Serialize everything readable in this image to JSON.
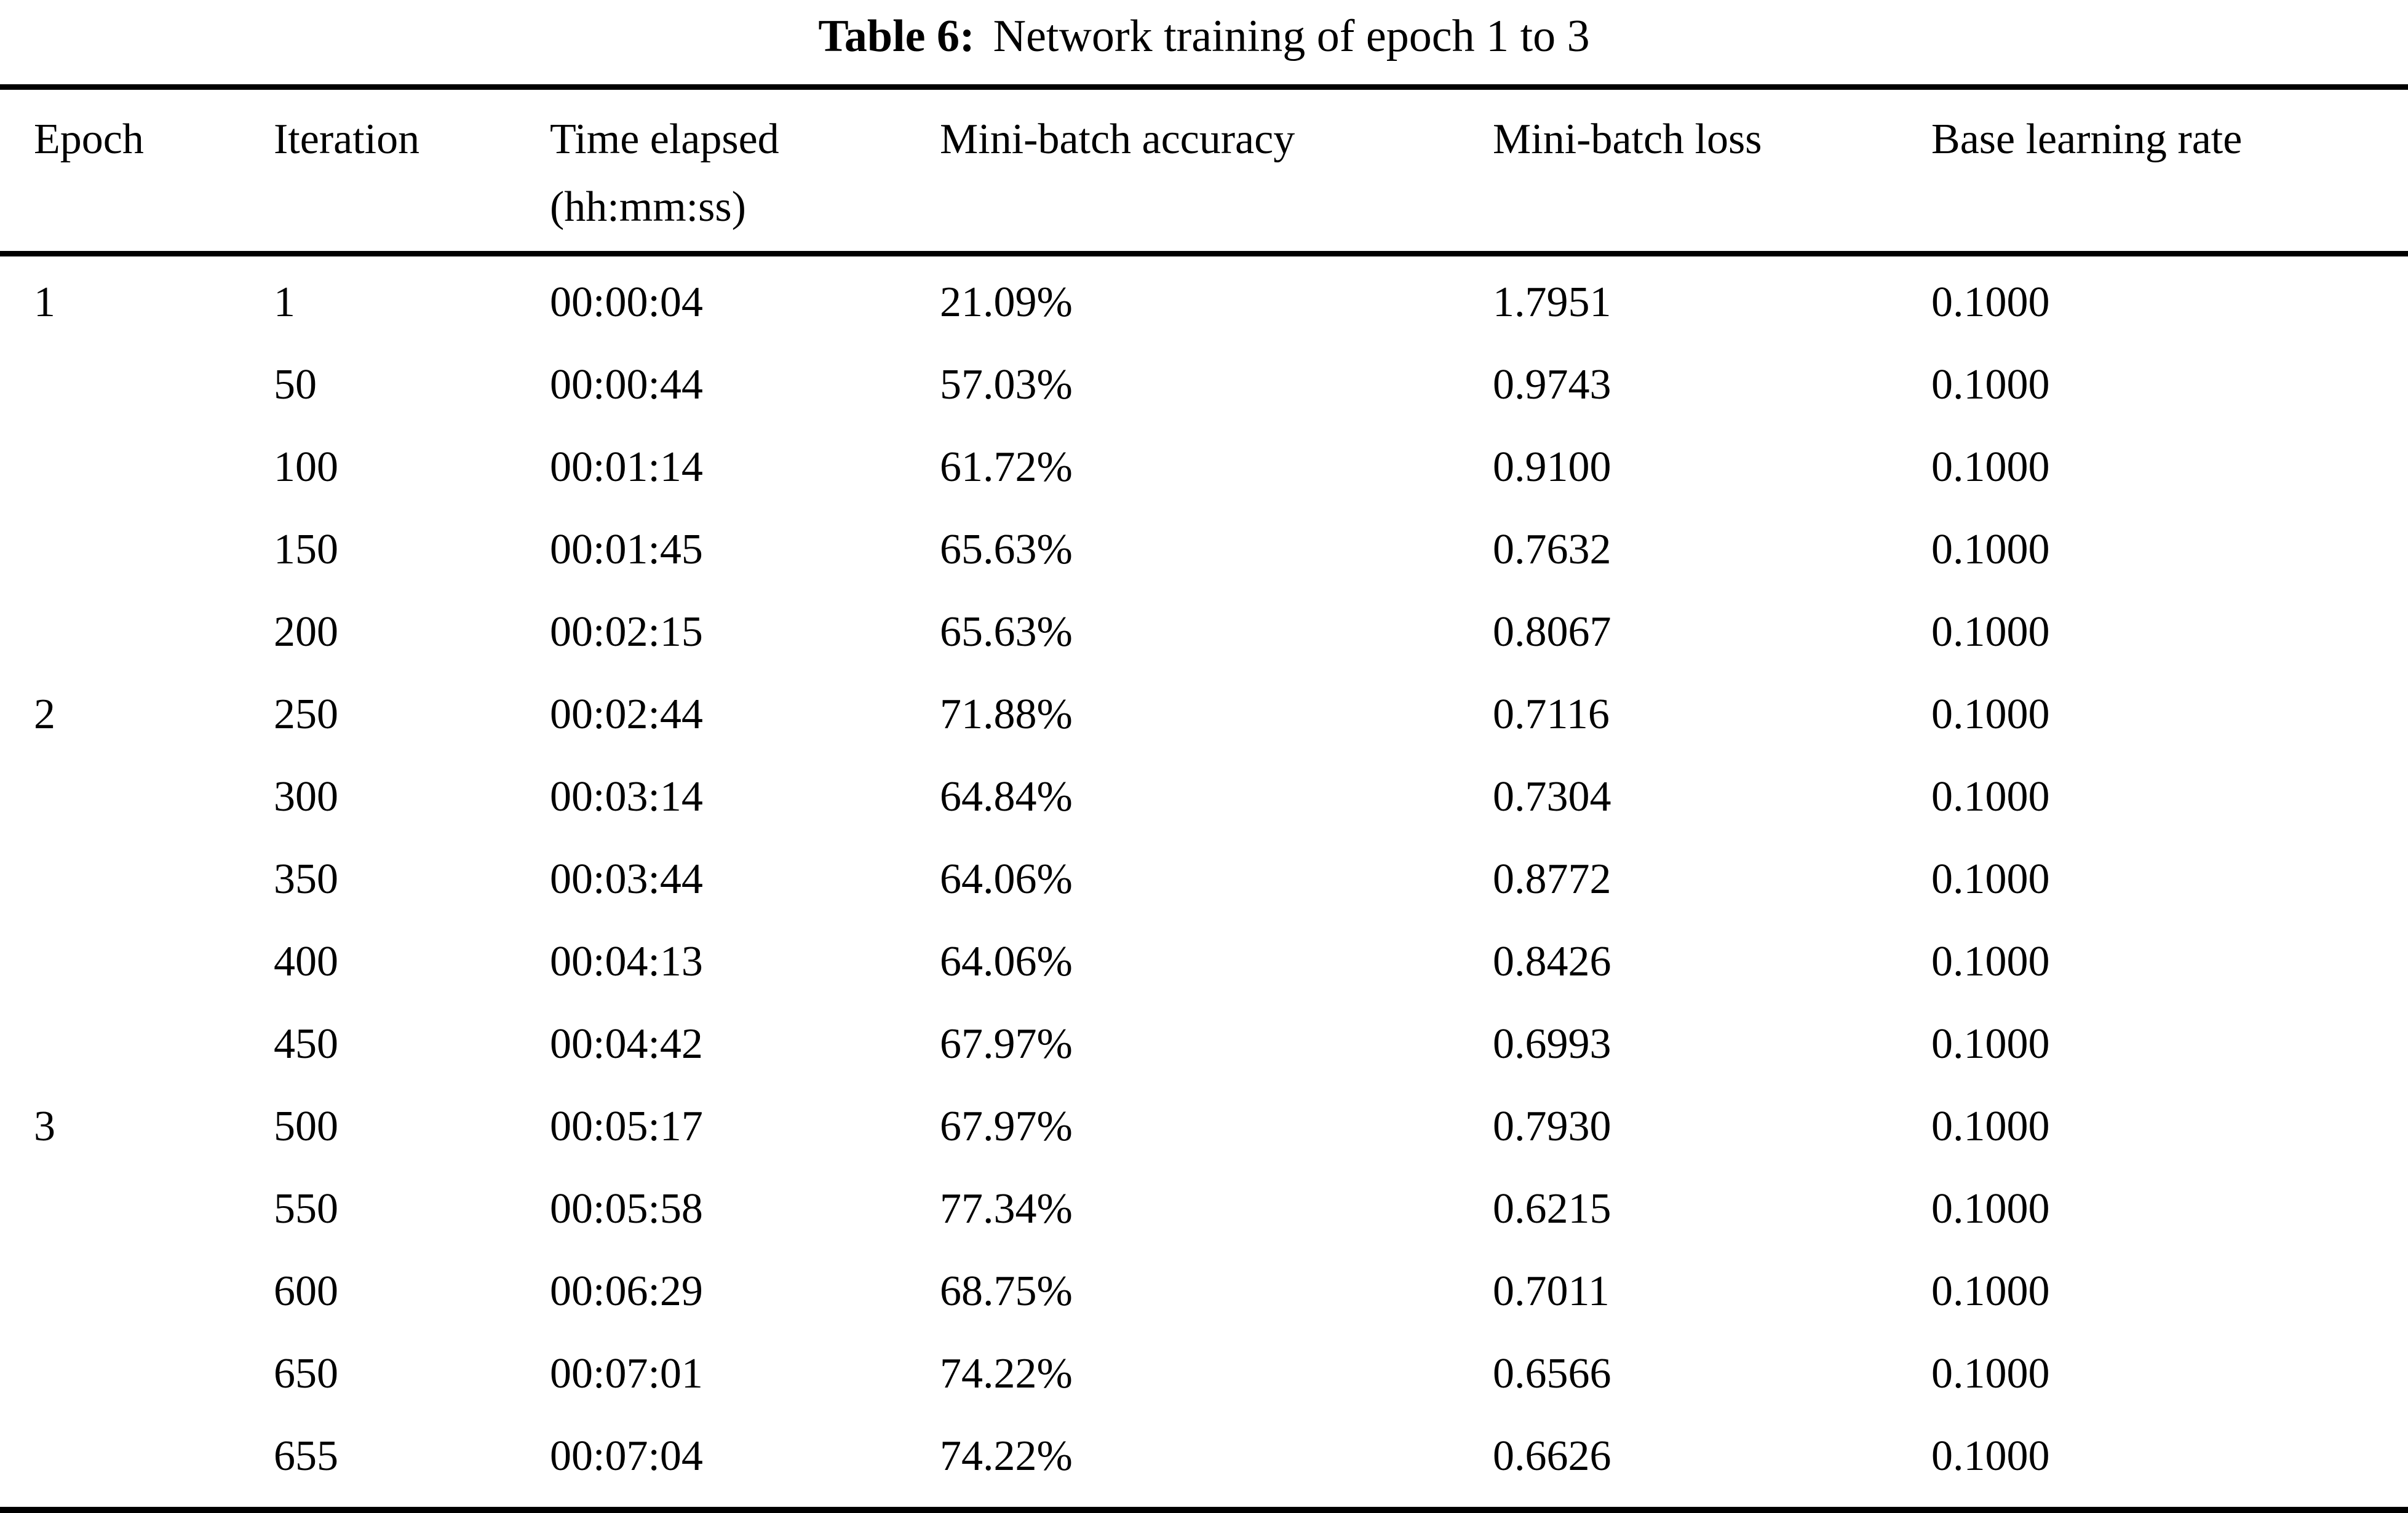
{
  "title": {
    "label": "Table 6:",
    "text": "Network training of epoch 1 to 3"
  },
  "colors": {
    "background": "#ffffff",
    "text": "#000000",
    "rule": "#000000"
  },
  "table": {
    "columns": [
      "Epoch",
      "Iteration",
      "Time elapsed\n(hh:mm:ss)",
      "Mini-batch accuracy",
      "Mini-batch loss",
      "Base learning rate"
    ],
    "rows": [
      [
        "1",
        "1",
        "00:00:04",
        "21.09%",
        "1.7951",
        "0.1000"
      ],
      [
        "",
        "50",
        "00:00:44",
        "57.03%",
        "0.9743",
        "0.1000"
      ],
      [
        "",
        "100",
        "00:01:14",
        "61.72%",
        "0.9100",
        "0.1000"
      ],
      [
        "",
        "150",
        "00:01:45",
        "65.63%",
        "0.7632",
        "0.1000"
      ],
      [
        "",
        "200",
        "00:02:15",
        "65.63%",
        "0.8067",
        "0.1000"
      ],
      [
        "2",
        "250",
        "00:02:44",
        "71.88%",
        "0.7116",
        "0.1000"
      ],
      [
        "",
        "300",
        "00:03:14",
        "64.84%",
        "0.7304",
        "0.1000"
      ],
      [
        "",
        "350",
        "00:03:44",
        "64.06%",
        "0.8772",
        "0.1000"
      ],
      [
        "",
        "400",
        "00:04:13",
        "64.06%",
        "0.8426",
        "0.1000"
      ],
      [
        "",
        "450",
        "00:04:42",
        "67.97%",
        "0.6993",
        "0.1000"
      ],
      [
        "3",
        "500",
        "00:05:17",
        "67.97%",
        "0.7930",
        "0.1000"
      ],
      [
        "",
        "550",
        "00:05:58",
        "77.34%",
        "0.6215",
        "0.1000"
      ],
      [
        "",
        "600",
        "00:06:29",
        "68.75%",
        "0.7011",
        "0.1000"
      ],
      [
        "",
        "650",
        "00:07:01",
        "74.22%",
        "0.6566",
        "0.1000"
      ],
      [
        "",
        "655",
        "00:07:04",
        "74.22%",
        "0.6626",
        "0.1000"
      ]
    ]
  }
}
